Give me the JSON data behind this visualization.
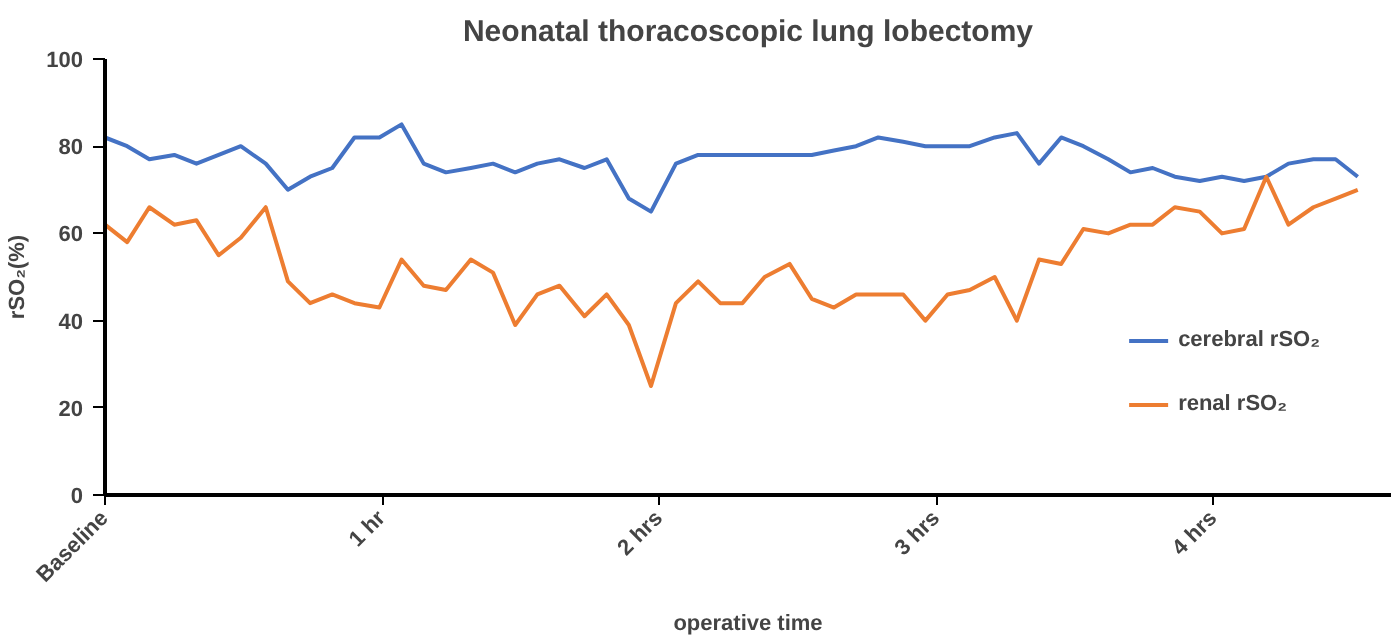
{
  "chart_data": {
    "type": "line",
    "title": "Neonatal thoracoscopic lung lobectomy",
    "xlabel": "operative time",
    "ylabel": "rSO₂(%)",
    "x": [
      0,
      0.08,
      0.16,
      0.25,
      0.33,
      0.41,
      0.49,
      0.58,
      0.66,
      0.74,
      0.82,
      0.9,
      0.99,
      1.07,
      1.15,
      1.23,
      1.32,
      1.4,
      1.48,
      1.56,
      1.64,
      1.73,
      1.81,
      1.89,
      1.97,
      2.06,
      2.14,
      2.22,
      2.3,
      2.38,
      2.47,
      2.55,
      2.63,
      2.71,
      2.79,
      2.88,
      2.96,
      3.04,
      3.12,
      3.21,
      3.29,
      3.37,
      3.45,
      3.53,
      3.62,
      3.7,
      3.78,
      3.86,
      3.95,
      4.03,
      4.11,
      4.19,
      4.27,
      4.36,
      4.44,
      4.52
    ],
    "series": [
      {
        "name": "cerebral rSO₂",
        "color": "#4472c4",
        "values": [
          82,
          80,
          77,
          78,
          76,
          78,
          80,
          76,
          70,
          73,
          75,
          82,
          82,
          85,
          76,
          74,
          75,
          76,
          74,
          76,
          77,
          75,
          77,
          68,
          65,
          76,
          78,
          78,
          78,
          78,
          78,
          78,
          79,
          80,
          82,
          81,
          80,
          80,
          80,
          82,
          83,
          76,
          82,
          80,
          77,
          74,
          75,
          73,
          72,
          73,
          72,
          73,
          76,
          77,
          77,
          73
        ]
      },
      {
        "name": "renal rSO₂",
        "color": "#ed7d31",
        "values": [
          62,
          58,
          66,
          62,
          63,
          55,
          59,
          66,
          49,
          44,
          46,
          44,
          43,
          54,
          48,
          47,
          54,
          51,
          39,
          46,
          48,
          41,
          46,
          39,
          25,
          44,
          49,
          44,
          44,
          50,
          53,
          45,
          43,
          46,
          46,
          46,
          40,
          46,
          47,
          50,
          40,
          54,
          53,
          61,
          60,
          62,
          62,
          66,
          65,
          60,
          61,
          73,
          62,
          66,
          68,
          70
        ]
      }
    ],
    "xlim": [
      0,
      4.64
    ],
    "xticks": [
      {
        "value": 0,
        "label": "Baseline"
      },
      {
        "value": 1,
        "label": "1 hr"
      },
      {
        "value": 2,
        "label": "2 hrs"
      },
      {
        "value": 3,
        "label": "3 hrs"
      },
      {
        "value": 4,
        "label": "4 hrs"
      }
    ],
    "ylim": [
      0,
      100
    ],
    "yticks": [
      0,
      20,
      40,
      60,
      80,
      100
    ],
    "grid": false,
    "legend": "right",
    "marker": "none",
    "line_style": "solid"
  }
}
